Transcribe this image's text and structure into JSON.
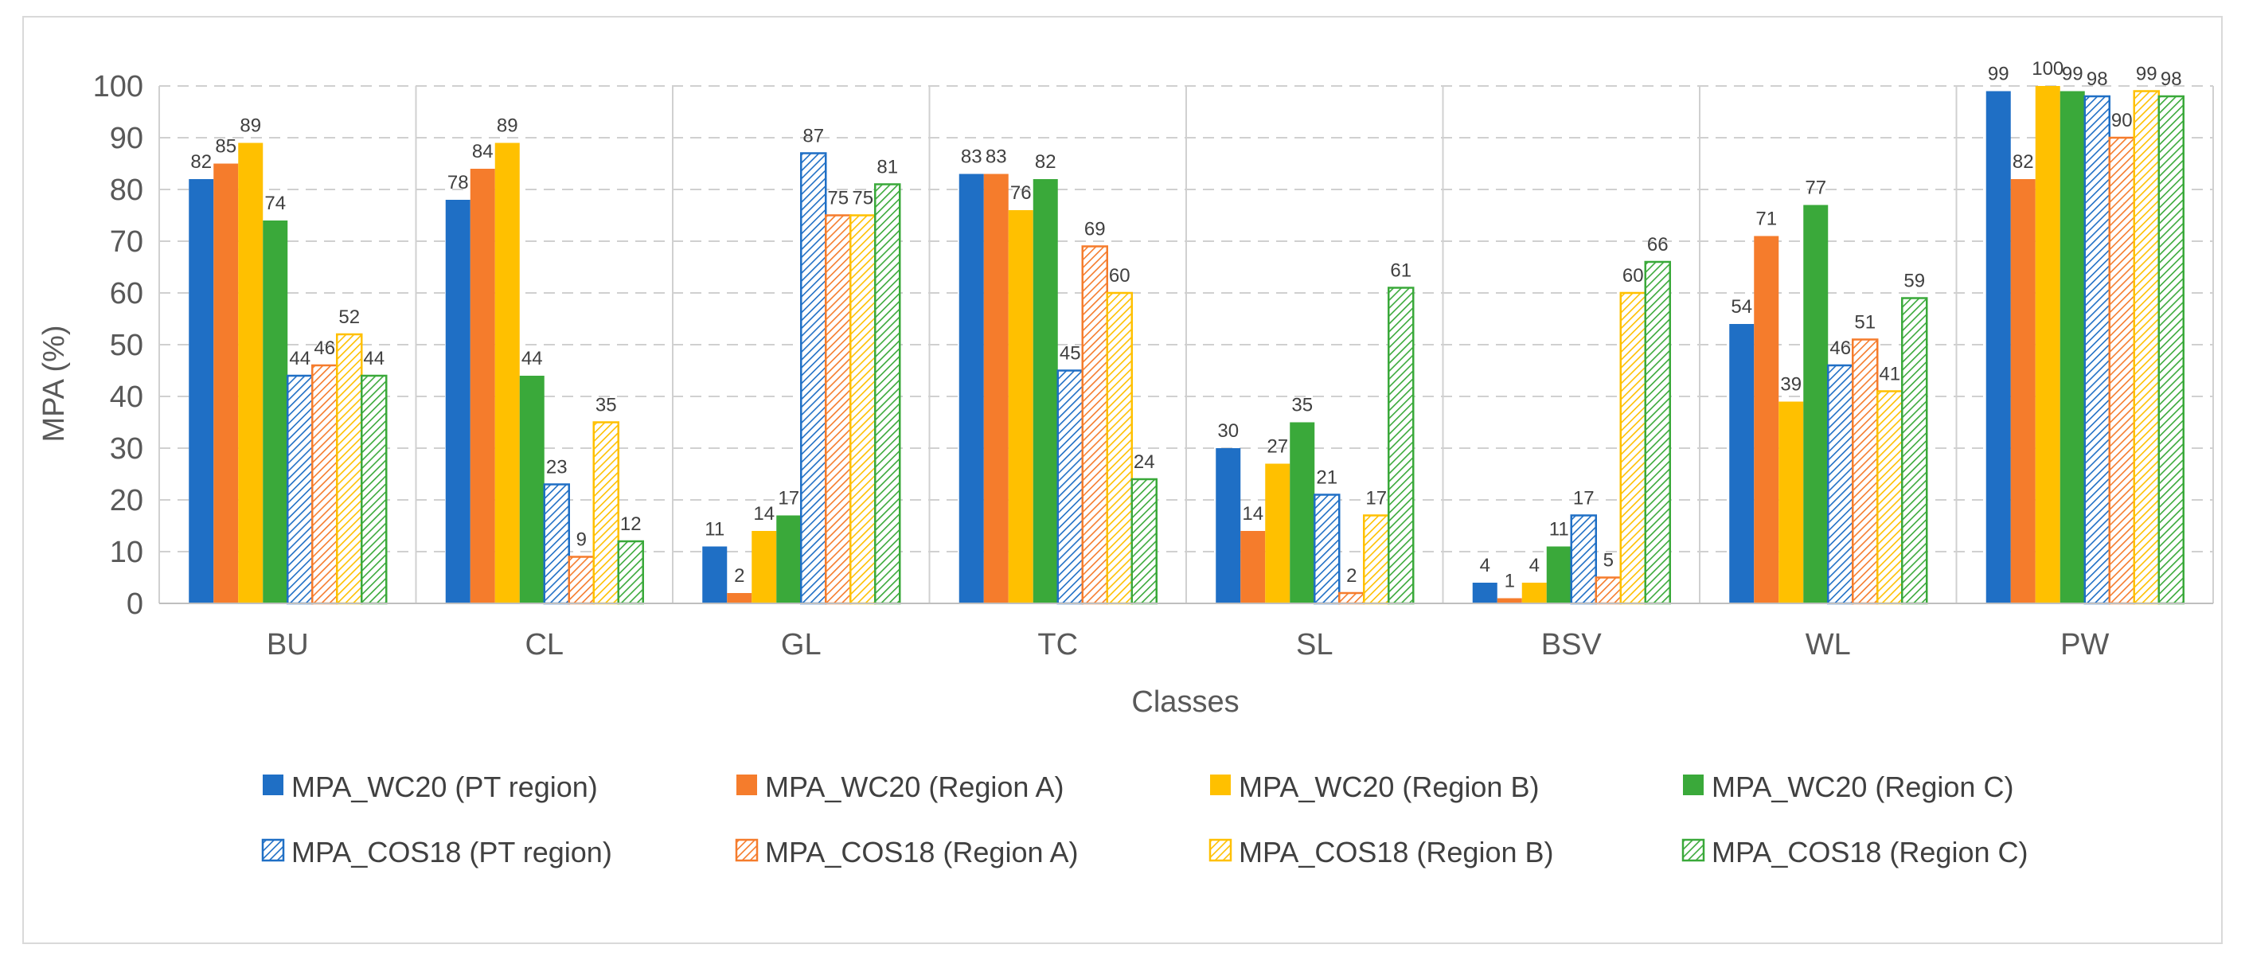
{
  "chart_data": {
    "type": "bar",
    "title": "",
    "xlabel": "Classes",
    "ylabel": "MPA (%)",
    "ylim": [
      0,
      100
    ],
    "yticks": [
      0,
      10,
      20,
      30,
      40,
      50,
      60,
      70,
      80,
      90,
      100
    ],
    "categories": [
      "BU",
      "CL",
      "GL",
      "TC",
      "SL",
      "BSV",
      "WL",
      "PW"
    ],
    "grid": "horizontal dashed",
    "legend_position": "bottom",
    "series": [
      {
        "name": "MPA_WC20 (PT region)",
        "color": "#1f6fc5",
        "pattern": "solid",
        "values": [
          82,
          78,
          11,
          83,
          30,
          4,
          54,
          99
        ],
        "labels": [
          "82",
          "78",
          "11",
          "83",
          "30",
          "4",
          "54",
          "99"
        ]
      },
      {
        "name": "MPA_WC20 (Region A)",
        "color": "#f57c2c",
        "pattern": "solid",
        "values": [
          85,
          84,
          2,
          83,
          14,
          1,
          71,
          82
        ],
        "labels": [
          "85",
          "84",
          "2",
          "83",
          "14",
          "1",
          "71",
          "82"
        ]
      },
      {
        "name": "MPA_WC20 (Region B)",
        "color": "#ffc000",
        "pattern": "solid",
        "values": [
          89,
          89,
          14,
          76,
          27,
          4,
          39,
          100
        ],
        "labels": [
          "89",
          "89",
          "14",
          "76",
          "27",
          "4",
          "39",
          "100"
        ]
      },
      {
        "name": "MPA_WC20 (Region C)",
        "color": "#3aa93a",
        "pattern": "solid",
        "values": [
          74,
          44,
          17,
          82,
          35,
          11,
          77,
          99
        ],
        "labels": [
          "74",
          "44",
          "17",
          "82",
          "35",
          "11",
          "77",
          "99"
        ]
      },
      {
        "name": "MPA_COS18 (PT region)",
        "color": "#1f6fc5",
        "pattern": "hatch",
        "values": [
          44,
          23,
          87,
          45,
          21,
          17,
          46,
          98
        ],
        "labels": [
          "44",
          "23",
          "87",
          "45",
          "21",
          "17",
          "46",
          "98"
        ]
      },
      {
        "name": "MPA_COS18 (Region A)",
        "color": "#f57c2c",
        "pattern": "hatch",
        "values": [
          46,
          9,
          75,
          69,
          2,
          5,
          51,
          90
        ],
        "labels": [
          "46",
          "9",
          "75",
          "69",
          "2",
          "5",
          "51",
          "90"
        ]
      },
      {
        "name": "MPA_COS18 (Region B)",
        "color": "#ffc000",
        "pattern": "hatch",
        "values": [
          52,
          35,
          75,
          60,
          17,
          60,
          41,
          99
        ],
        "labels": [
          "52",
          "35",
          "75",
          "60",
          "17",
          "60",
          "41",
          "99"
        ]
      },
      {
        "name": "MPA_COS18 (Region C)",
        "color": "#3aa93a",
        "pattern": "hatch",
        "values": [
          44,
          12,
          81,
          24,
          61,
          66,
          59,
          98
        ],
        "labels": [
          "44",
          "12",
          "81",
          "24",
          "61",
          "66",
          "59",
          "98"
        ]
      }
    ]
  }
}
